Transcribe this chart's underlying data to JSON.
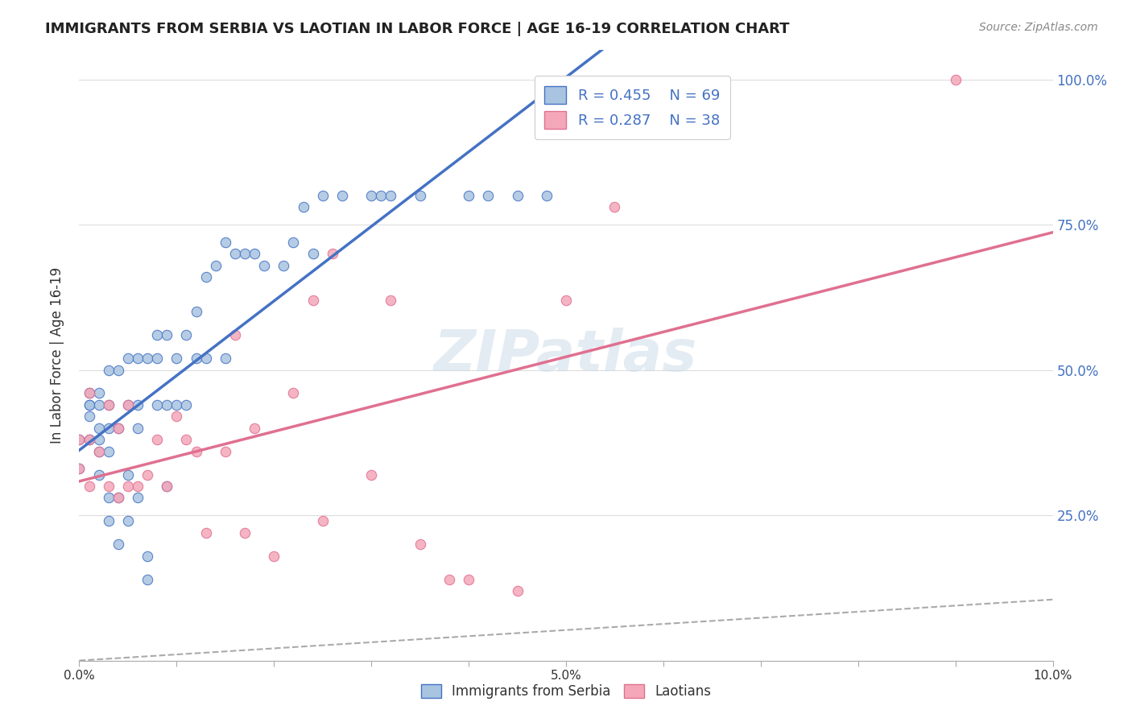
{
  "title": "IMMIGRANTS FROM SERBIA VS LAOTIAN IN LABOR FORCE | AGE 16-19 CORRELATION CHART",
  "source": "Source: ZipAtlas.com",
  "xlabel": "",
  "ylabel": "In Labor Force | Age 16-19",
  "xlim": [
    0.0,
    0.1
  ],
  "ylim": [
    0.0,
    1.05
  ],
  "yticks": [
    0.0,
    0.25,
    0.5,
    0.75,
    1.0
  ],
  "ytick_labels": [
    "",
    "25.0%",
    "50.0%",
    "75.0%",
    "100.0%"
  ],
  "xticks": [
    0.0,
    0.01,
    0.02,
    0.03,
    0.04,
    0.05,
    0.06,
    0.07,
    0.08,
    0.09,
    0.1
  ],
  "xtick_labels": [
    "0.0%",
    "",
    "",
    "",
    "",
    "5.0%",
    "",
    "",
    "",
    "",
    "10.0%"
  ],
  "serbia_color": "#a8c4e0",
  "laotian_color": "#f4a7b9",
  "serbia_line_color": "#4472c4",
  "laotian_line_color": "#f4a7b9",
  "serbia_r": 0.455,
  "serbia_n": 69,
  "laotian_r": 0.287,
  "laotian_n": 38,
  "serbia_x": [
    0.0,
    0.0,
    0.001,
    0.001,
    0.001,
    0.001,
    0.001,
    0.002,
    0.002,
    0.002,
    0.002,
    0.002,
    0.002,
    0.003,
    0.003,
    0.003,
    0.003,
    0.003,
    0.003,
    0.004,
    0.004,
    0.004,
    0.004,
    0.005,
    0.005,
    0.005,
    0.005,
    0.006,
    0.006,
    0.006,
    0.006,
    0.007,
    0.007,
    0.007,
    0.008,
    0.008,
    0.008,
    0.009,
    0.009,
    0.009,
    0.01,
    0.01,
    0.011,
    0.011,
    0.012,
    0.012,
    0.013,
    0.013,
    0.014,
    0.015,
    0.015,
    0.016,
    0.017,
    0.018,
    0.019,
    0.021,
    0.022,
    0.023,
    0.024,
    0.025,
    0.027,
    0.03,
    0.031,
    0.032,
    0.035,
    0.04,
    0.042,
    0.045,
    0.048
  ],
  "serbia_y": [
    0.33,
    0.38,
    0.38,
    0.42,
    0.44,
    0.44,
    0.46,
    0.32,
    0.36,
    0.38,
    0.4,
    0.44,
    0.46,
    0.24,
    0.28,
    0.36,
    0.4,
    0.44,
    0.5,
    0.2,
    0.28,
    0.4,
    0.5,
    0.24,
    0.32,
    0.44,
    0.52,
    0.28,
    0.4,
    0.44,
    0.52,
    0.14,
    0.18,
    0.52,
    0.44,
    0.52,
    0.56,
    0.3,
    0.44,
    0.56,
    0.44,
    0.52,
    0.44,
    0.56,
    0.52,
    0.6,
    0.52,
    0.66,
    0.68,
    0.52,
    0.72,
    0.7,
    0.7,
    0.7,
    0.68,
    0.68,
    0.72,
    0.78,
    0.7,
    0.8,
    0.8,
    0.8,
    0.8,
    0.8,
    0.8,
    0.8,
    0.8,
    0.8,
    0.8
  ],
  "laotian_x": [
    0.0,
    0.0,
    0.001,
    0.001,
    0.001,
    0.002,
    0.003,
    0.003,
    0.004,
    0.004,
    0.005,
    0.005,
    0.006,
    0.007,
    0.008,
    0.009,
    0.01,
    0.011,
    0.012,
    0.013,
    0.015,
    0.016,
    0.017,
    0.018,
    0.02,
    0.022,
    0.024,
    0.025,
    0.026,
    0.03,
    0.032,
    0.035,
    0.038,
    0.04,
    0.045,
    0.05,
    0.055,
    0.09
  ],
  "laotian_y": [
    0.33,
    0.38,
    0.3,
    0.38,
    0.46,
    0.36,
    0.3,
    0.44,
    0.28,
    0.4,
    0.3,
    0.44,
    0.3,
    0.32,
    0.38,
    0.3,
    0.42,
    0.38,
    0.36,
    0.22,
    0.36,
    0.56,
    0.22,
    0.4,
    0.18,
    0.46,
    0.62,
    0.24,
    0.7,
    0.32,
    0.62,
    0.2,
    0.14,
    0.14,
    0.12,
    0.62,
    0.78,
    1.0
  ],
  "watermark": "ZIPatlas",
  "background_color": "#ffffff",
  "grid_color": "#dddddd"
}
